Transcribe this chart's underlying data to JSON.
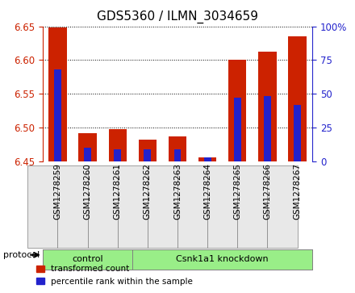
{
  "title": "GDS5360 / ILMN_3034659",
  "samples": [
    "GSM1278259",
    "GSM1278260",
    "GSM1278261",
    "GSM1278262",
    "GSM1278263",
    "GSM1278264",
    "GSM1278265",
    "GSM1278266",
    "GSM1278267"
  ],
  "transformed_count": [
    6.648,
    6.492,
    6.497,
    6.482,
    6.487,
    6.455,
    6.6,
    6.612,
    6.635
  ],
  "percentile_rank": [
    68,
    10,
    9,
    9,
    9,
    3,
    47,
    48,
    42
  ],
  "ylim_left": [
    6.45,
    6.65
  ],
  "ylim_right": [
    0,
    100
  ],
  "yticks_left": [
    6.45,
    6.5,
    6.55,
    6.6,
    6.65
  ],
  "yticks_right": [
    0,
    25,
    50,
    75,
    100
  ],
  "bar_base": 6.45,
  "bar_width": 0.6,
  "red_color": "#cc2200",
  "blue_color": "#2222cc",
  "control_group": [
    "GSM1278259",
    "GSM1278260",
    "GSM1278261"
  ],
  "knockdown_group": [
    "GSM1278262",
    "GSM1278263",
    "GSM1278264",
    "GSM1278265",
    "GSM1278266",
    "GSM1278267"
  ],
  "control_label": "control",
  "knockdown_label": "Csnk1a1 knockdown",
  "protocol_label": "protocol",
  "legend_red": "transformed count",
  "legend_blue": "percentile rank within the sample",
  "bg_color": "#e8e8e8",
  "group_bg_color": "#99ee88",
  "plot_bg": "#ffffff"
}
